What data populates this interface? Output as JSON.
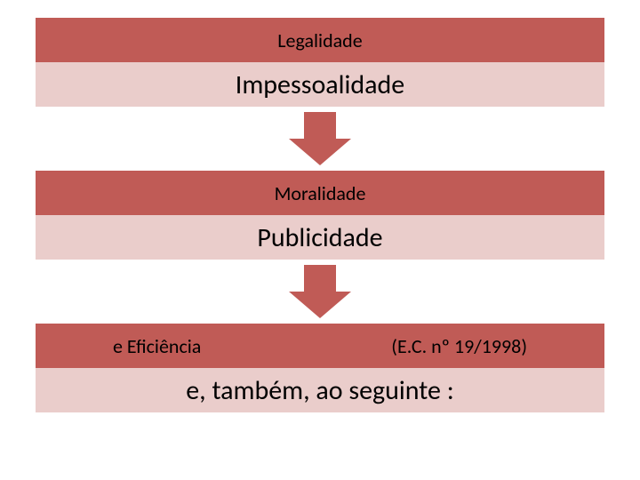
{
  "colors": {
    "dark": "#c05b56",
    "light": "#eacdcb",
    "arrow": "#c05b56",
    "page_bg": "#ffffff",
    "text": "#000000"
  },
  "blocks": [
    {
      "top_label": "Legalidade",
      "bottom_label": "Impessoalidade"
    },
    {
      "top_label": "Moralidade",
      "bottom_label": "Publicidade"
    },
    {
      "top_left": "e   Eficiência",
      "top_right": "(E.C. nº 19/1998)",
      "bottom_label": "e, também, ao seguinte :"
    }
  ],
  "typography": {
    "top_fontsize": 22,
    "bottom_fontsize": 30
  }
}
